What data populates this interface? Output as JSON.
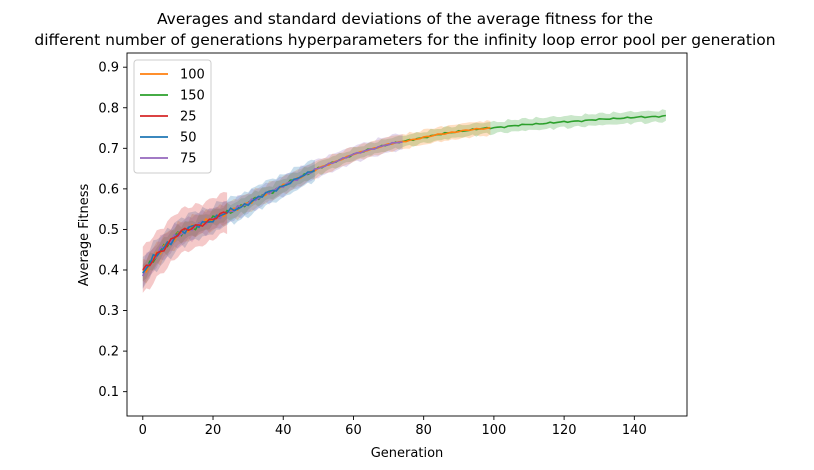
{
  "chart_data": {
    "type": "line",
    "title_line1": "Averages and standard deviations of the average fitness for the",
    "title_line2": "different number of generations hyperparameters for the infinity loop error pool per generation",
    "xlabel": "Generation",
    "ylabel": "Average Fitness",
    "xlim": [
      -4.5,
      155
    ],
    "ylim": [
      0.04,
      0.935
    ],
    "xticks": [
      0,
      20,
      40,
      60,
      80,
      100,
      120,
      140
    ],
    "yticks": [
      0.1,
      0.2,
      0.3,
      0.4,
      0.5,
      0.6,
      0.7,
      0.8,
      0.9
    ],
    "legend_position": "top-left",
    "bands_shown": true,
    "series": [
      {
        "name": "100",
        "color": "#ff7f0e",
        "length": 100,
        "final": 0.75,
        "band_std": 0.016
      },
      {
        "name": "150",
        "color": "#2ca02c",
        "length": 150,
        "final": 0.78,
        "band_std": 0.012
      },
      {
        "name": "25",
        "color": "#d62728",
        "length": 25,
        "final": 0.535,
        "band_std": 0.035
      },
      {
        "name": "50",
        "color": "#1f77b4",
        "length": 50,
        "final": 0.655,
        "band_std": 0.022
      },
      {
        "name": "75",
        "color": "#9467bd",
        "length": 75,
        "final": 0.715,
        "band_std": 0.018
      }
    ],
    "mean_curve": {
      "x": [
        0,
        2,
        4,
        6,
        8,
        10,
        12,
        15,
        18,
        20,
        22,
        25,
        28,
        30,
        32,
        35,
        38,
        40,
        42,
        45,
        48,
        50,
        55,
        60,
        65,
        70,
        75,
        80,
        85,
        90,
        95,
        100,
        105,
        110,
        115,
        120,
        125,
        130,
        135,
        140,
        145,
        149
      ],
      "y": [
        0.395,
        0.415,
        0.438,
        0.455,
        0.472,
        0.488,
        0.497,
        0.508,
        0.518,
        0.525,
        0.535,
        0.545,
        0.555,
        0.565,
        0.575,
        0.588,
        0.598,
        0.607,
        0.617,
        0.63,
        0.642,
        0.65,
        0.668,
        0.685,
        0.698,
        0.71,
        0.718,
        0.727,
        0.735,
        0.742,
        0.747,
        0.751,
        0.755,
        0.759,
        0.762,
        0.765,
        0.768,
        0.771,
        0.774,
        0.776,
        0.778,
        0.78
      ]
    }
  }
}
